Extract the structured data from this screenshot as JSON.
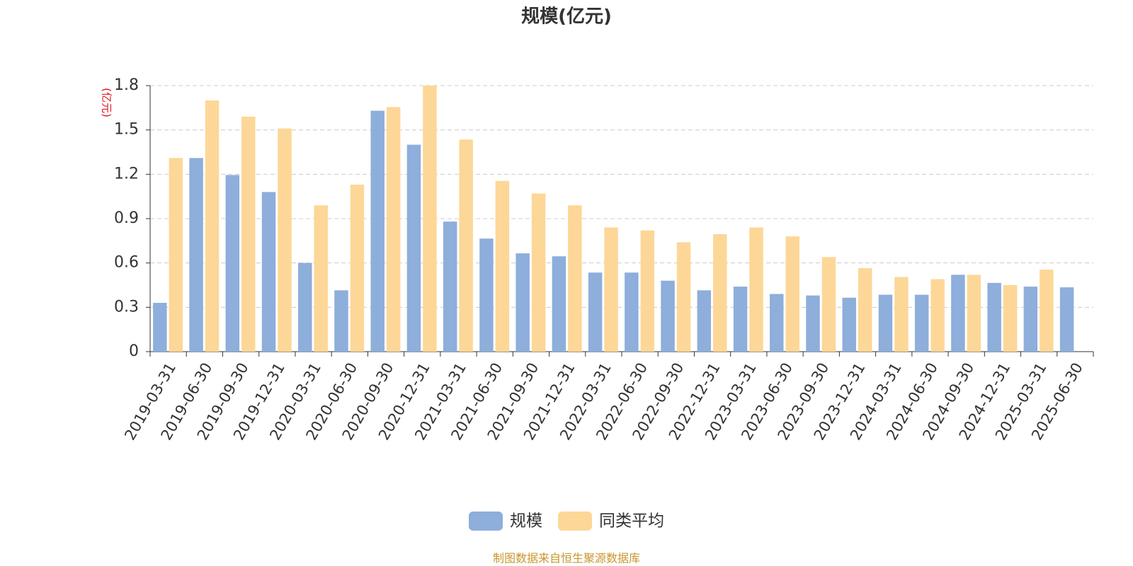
{
  "chart_data": {
    "type": "bar",
    "title": "规模(亿元)",
    "y_label": "(亿元)",
    "source": "制图数据来自恒生聚源数据库",
    "categories": [
      "2019-03-31",
      "2019-06-30",
      "2019-09-30",
      "2019-12-31",
      "2020-03-31",
      "2020-06-30",
      "2020-09-30",
      "2020-12-31",
      "2021-03-31",
      "2021-06-30",
      "2021-09-30",
      "2021-12-31",
      "2022-03-31",
      "2022-06-30",
      "2022-09-30",
      "2022-12-31",
      "2023-03-31",
      "2023-06-30",
      "2023-09-30",
      "2023-12-31",
      "2024-03-31",
      "2024-06-30",
      "2024-09-30",
      "2024-12-31",
      "2025-03-31",
      "2025-06-30"
    ],
    "series": [
      {
        "name": "规模",
        "color": "#8eaedb",
        "values": [
          0.33,
          1.31,
          1.195,
          1.08,
          0.6,
          0.415,
          1.63,
          1.4,
          0.88,
          0.765,
          0.665,
          0.645,
          0.535,
          0.535,
          0.48,
          0.415,
          0.44,
          0.39,
          0.38,
          0.365,
          0.385,
          0.385,
          0.52,
          0.465,
          0.44,
          0.435
        ]
      },
      {
        "name": "同类平均",
        "color": "#fdd797",
        "values": [
          1.31,
          1.7,
          1.59,
          1.51,
          0.99,
          1.13,
          1.655,
          1.8,
          1.435,
          1.155,
          1.07,
          0.99,
          0.84,
          0.82,
          0.74,
          0.795,
          0.84,
          0.78,
          0.64,
          0.565,
          0.505,
          0.49,
          0.52,
          0.45,
          0.555,
          null
        ]
      }
    ],
    "ylim": [
      0,
      1.8
    ],
    "yticks": [
      0,
      0.3,
      0.6,
      0.9,
      1.2,
      1.5,
      1.8
    ],
    "grid": true
  }
}
